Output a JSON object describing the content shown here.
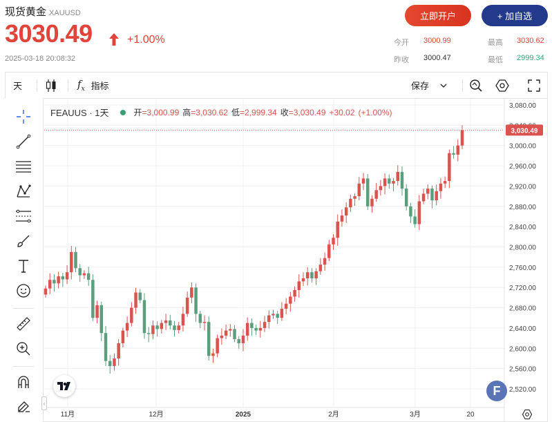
{
  "header": {
    "name": "现货黄金",
    "code": "XAUUSD",
    "price": "3030.49",
    "change_pct": "+1.00%",
    "timestamp": "2025-03-18 20:08:32",
    "open_account_label": "立即开户",
    "add_watch_label": "+ 加自选",
    "stats": {
      "open_label": "今开",
      "open_value": "3000.99",
      "high_label": "最高",
      "high_value": "3030.62",
      "prev_close_label": "昨收",
      "prev_close_value": "3000.47",
      "low_label": "最低",
      "low_value": "2999.34"
    }
  },
  "toolbar": {
    "interval_label": "天",
    "indicators_label": "指标",
    "save_label": "保存"
  },
  "legend": {
    "symbol": "FEAUUS · 1天",
    "o_label": "开",
    "o": "=3,000.99",
    "h_label": "高",
    "h": "=3,030.62",
    "l_label": "低",
    "l": "=2,999.34",
    "c_label": "收",
    "c": "=3,030.49",
    "chg": "+30.02",
    "chg_pct": "(+1.00%)"
  },
  "colors": {
    "up": "#d9534f",
    "down": "#5a9e7e",
    "accent": "#e0443a",
    "brand": "#23398c"
  },
  "icons": [
    "crosshair-icon",
    "trendline-icon",
    "fib-icon",
    "pattern-icon",
    "projection-icon",
    "brush-icon",
    "text-icon",
    "emoji-icon",
    "ruler-icon",
    "zoom-icon",
    "magnet-icon",
    "lock-icon",
    "candles-icon",
    "fx-icon",
    "alert-icon",
    "settings-hex-icon",
    "fullscreen-icon",
    "tradingview-logo",
    "f-badge-icon",
    "gear-icon"
  ],
  "chart_data": {
    "type": "candlestick",
    "y_ticks": [
      "3,080.00",
      "3,040.00",
      "3,000.00",
      "2,960.00",
      "2,920.00",
      "2,880.00",
      "2,840.00",
      "2,800.00",
      "2,760.00",
      "2,720.00",
      "2,680.00",
      "2,640.00",
      "2,600.00",
      "2,560.00",
      "2,520.00"
    ],
    "x_ticks": [
      "11月",
      "12月",
      "2025",
      "2月",
      "3月",
      "20"
    ],
    "last_price_label": "3,030.49",
    "ylim": [
      2495,
      3090
    ],
    "closes": [
      2718,
      2735,
      2728,
      2742,
      2736,
      2750,
      2790,
      2758,
      2744,
      2748,
      2735,
      2660,
      2685,
      2630,
      2575,
      2565,
      2580,
      2610,
      2635,
      2650,
      2680,
      2710,
      2695,
      2630,
      2628,
      2645,
      2638,
      2650,
      2655,
      2645,
      2636,
      2645,
      2668,
      2700,
      2720,
      2668,
      2650,
      2652,
      2585,
      2590,
      2620,
      2625,
      2635,
      2638,
      2618,
      2610,
      2625,
      2650,
      2640,
      2635,
      2640,
      2652,
      2665,
      2668,
      2660,
      2678,
      2688,
      2702,
      2715,
      2732,
      2738,
      2750,
      2738,
      2752,
      2765,
      2778,
      2805,
      2818,
      2850,
      2862,
      2878,
      2895,
      2900,
      2925,
      2935,
      2880,
      2895,
      2912,
      2920,
      2935,
      2925,
      2930,
      2948,
      2915,
      2880,
      2860,
      2845,
      2890,
      2905,
      2915,
      2892,
      2910,
      2925,
      2930,
      2985,
      2982,
      3000,
      3030
    ]
  }
}
